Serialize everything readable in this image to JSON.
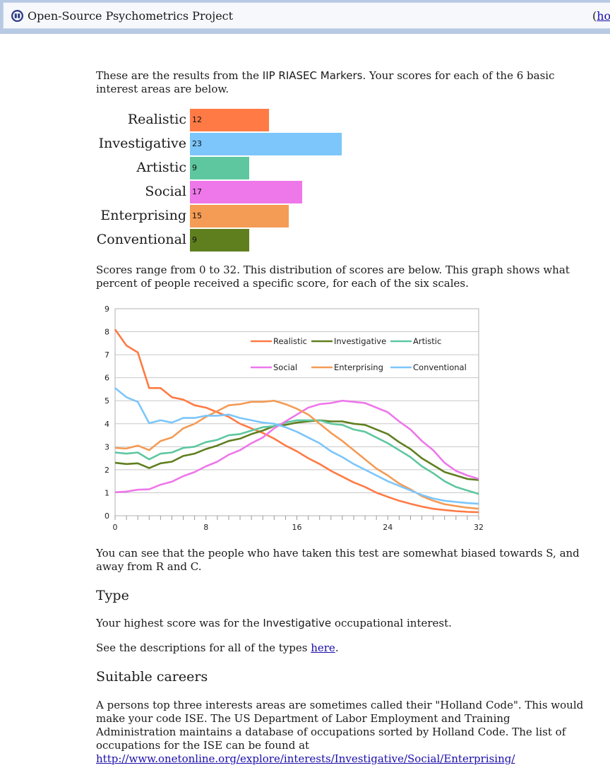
{
  "header": {
    "title": "Open-Source Psychometrics Project",
    "home_paren": "(",
    "home_link": "ho"
  },
  "intro": {
    "before": "These are the results from the ",
    "test_name": "IIP RIASEC Markers",
    "after": ". Your scores for each of the 6 basic interest areas are below."
  },
  "scores": {
    "max": 32,
    "items": [
      {
        "label": "Realistic",
        "value": 12,
        "color": "#ff7a45"
      },
      {
        "label": "Investigative",
        "value": 23,
        "color": "#7cc6fb"
      },
      {
        "label": "Artistic",
        "value": 9,
        "color": "#5ec7a0"
      },
      {
        "label": "Social",
        "value": 17,
        "color": "#ee77ea"
      },
      {
        "label": "Enterprising",
        "value": 15,
        "color": "#f49b55"
      },
      {
        "label": "Conventional",
        "value": 9,
        "color": "#5f7f1f"
      }
    ]
  },
  "distribution_text": "Scores range from 0 to 32. This distribution of scores are below. This graph shows what percent of people received a specific score, for each of the six scales.",
  "chart_data": {
    "type": "line",
    "title": "",
    "xlabel": "",
    "ylabel": "",
    "xlim": [
      0,
      32
    ],
    "ylim": [
      0,
      9
    ],
    "x_ticks": [
      0,
      8,
      16,
      24,
      32
    ],
    "y_ticks": [
      0,
      1,
      2,
      3,
      4,
      5,
      6,
      7,
      8,
      9
    ],
    "grid": true,
    "legend_position": "top-right",
    "x": [
      0,
      1,
      2,
      3,
      4,
      5,
      6,
      7,
      8,
      9,
      10,
      11,
      12,
      13,
      14,
      15,
      16,
      17,
      18,
      19,
      20,
      21,
      22,
      23,
      24,
      25,
      26,
      27,
      28,
      29,
      30,
      31,
      32
    ],
    "series": [
      {
        "name": "Realistic",
        "color": "#ff7a45",
        "values": [
          8.1,
          7.4,
          7.1,
          5.55,
          5.55,
          5.15,
          5.05,
          4.8,
          4.7,
          4.5,
          4.3,
          4.0,
          3.8,
          3.6,
          3.35,
          3.05,
          2.8,
          2.5,
          2.25,
          1.95,
          1.7,
          1.45,
          1.25,
          1.0,
          0.82,
          0.65,
          0.52,
          0.4,
          0.3,
          0.25,
          0.2,
          0.17,
          0.15
        ]
      },
      {
        "name": "Investigative",
        "color": "#5f7f1f",
        "values": [
          2.3,
          2.25,
          2.28,
          2.07,
          2.28,
          2.35,
          2.6,
          2.7,
          2.9,
          3.05,
          3.25,
          3.35,
          3.55,
          3.7,
          3.9,
          3.95,
          4.05,
          4.1,
          4.15,
          4.1,
          4.1,
          4.0,
          3.95,
          3.75,
          3.55,
          3.2,
          2.9,
          2.5,
          2.2,
          1.9,
          1.75,
          1.6,
          1.55
        ]
      },
      {
        "name": "Artistic",
        "color": "#5ec7a0",
        "values": [
          2.75,
          2.7,
          2.75,
          2.45,
          2.7,
          2.75,
          2.95,
          3.0,
          3.2,
          3.3,
          3.5,
          3.55,
          3.7,
          3.85,
          3.9,
          4.05,
          4.15,
          4.15,
          4.15,
          4.0,
          3.95,
          3.75,
          3.65,
          3.4,
          3.15,
          2.85,
          2.55,
          2.15,
          1.85,
          1.5,
          1.25,
          1.1,
          0.95
        ]
      },
      {
        "name": "Social",
        "color": "#ee77ea",
        "values": [
          1.02,
          1.05,
          1.13,
          1.15,
          1.35,
          1.48,
          1.72,
          1.9,
          2.15,
          2.35,
          2.65,
          2.85,
          3.15,
          3.4,
          3.8,
          4.1,
          4.4,
          4.7,
          4.85,
          4.9,
          5.0,
          4.95,
          4.9,
          4.7,
          4.5,
          4.1,
          3.75,
          3.25,
          2.85,
          2.3,
          1.95,
          1.75,
          1.6
        ]
      },
      {
        "name": "Enterprising",
        "color": "#f49b55",
        "values": [
          2.95,
          2.92,
          3.05,
          2.85,
          3.25,
          3.4,
          3.8,
          4.0,
          4.3,
          4.55,
          4.8,
          4.85,
          4.95,
          4.95,
          5.0,
          4.85,
          4.65,
          4.4,
          4.0,
          3.6,
          3.25,
          2.85,
          2.45,
          2.05,
          1.75,
          1.4,
          1.15,
          0.85,
          0.65,
          0.5,
          0.42,
          0.35,
          0.3
        ]
      },
      {
        "name": "Conventional",
        "color": "#7cc6fb",
        "values": [
          5.55,
          5.15,
          4.95,
          4.02,
          4.15,
          4.05,
          4.25,
          4.25,
          4.35,
          4.35,
          4.4,
          4.25,
          4.15,
          4.05,
          4.0,
          3.85,
          3.65,
          3.4,
          3.15,
          2.8,
          2.55,
          2.25,
          2.0,
          1.75,
          1.5,
          1.3,
          1.1,
          0.9,
          0.75,
          0.65,
          0.6,
          0.55,
          0.52
        ]
      }
    ]
  },
  "bias_text": "You can see that the people who have taken this test are somewhat biased towards S, and away from R and C.",
  "type_section": {
    "heading": "Type",
    "highest_before": "Your highest score was for the ",
    "highest_type": "Investigative",
    "highest_after": " occupational interest.",
    "desc_before": "See the descriptions for all of the types ",
    "desc_link": "here",
    "desc_after": "."
  },
  "careers_section": {
    "heading": "Suitable careers",
    "text": "A persons top three interests areas are sometimes called their \"Holland Code\". This would make your code ISE. The US Department of Labor Employment and Training Administration maintains a database of occupations sorted by Holland Code. The list of occupations for the ISE can be found at",
    "link": "http://www.onetonline.org/explore/interests/Investigative/Social/Enterprising/"
  }
}
